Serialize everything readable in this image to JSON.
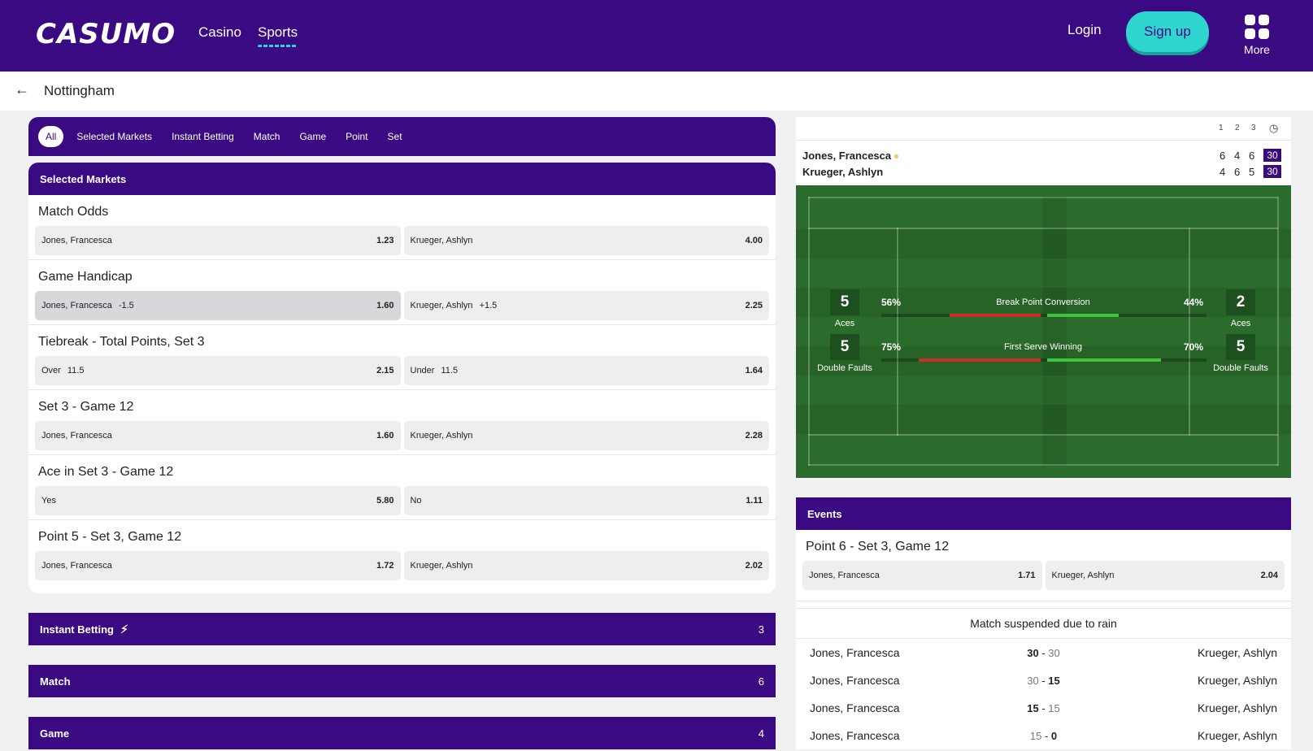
{
  "header": {
    "logo": "CASUMO",
    "nav": [
      {
        "label": "Casino"
      },
      {
        "label": "Sports"
      }
    ],
    "login": "Login",
    "signup": "Sign up",
    "more": "More"
  },
  "breadcrumb": {
    "title": "Nottingham"
  },
  "filters": [
    "All",
    "Selected Markets",
    "Instant Betting",
    "Match",
    "Game",
    "Point",
    "Set"
  ],
  "selected_markets": {
    "title": "Selected Markets",
    "markets": [
      {
        "title": "Match Odds",
        "odds": [
          {
            "label": "Jones, Francesca",
            "line": "",
            "price": "1.23"
          },
          {
            "label": "Krueger, Ashlyn",
            "line": "",
            "price": "4.00"
          }
        ]
      },
      {
        "title": "Game Handicap",
        "odds": [
          {
            "label": "Jones, Francesca",
            "line": "-1.5",
            "price": "1.60"
          },
          {
            "label": "Krueger, Ashlyn",
            "line": "+1.5",
            "price": "2.25"
          }
        ]
      },
      {
        "title": "Tiebreak - Total Points, Set 3",
        "odds": [
          {
            "label": "Over",
            "line": "11.5",
            "price": "2.15"
          },
          {
            "label": "Under",
            "line": "11.5",
            "price": "1.64"
          }
        ]
      },
      {
        "title": "Set 3 - Game 12",
        "odds": [
          {
            "label": "Jones, Francesca",
            "line": "",
            "price": "1.60"
          },
          {
            "label": "Krueger, Ashlyn",
            "line": "",
            "price": "2.28"
          }
        ]
      },
      {
        "title": "Ace in Set 3 - Game 12",
        "odds": [
          {
            "label": "Yes",
            "line": "",
            "price": "5.80"
          },
          {
            "label": "No",
            "line": "",
            "price": "1.11"
          }
        ]
      },
      {
        "title": "Point 5 - Set 3, Game 12",
        "odds": [
          {
            "label": "Jones, Francesca",
            "line": "",
            "price": "1.72"
          },
          {
            "label": "Krueger, Ashlyn",
            "line": "",
            "price": "2.02"
          }
        ]
      }
    ]
  },
  "collapsed_sections": [
    {
      "title": "Instant Betting",
      "count": "3",
      "icon": "lightning-icon"
    },
    {
      "title": "Match",
      "count": "6"
    },
    {
      "title": "Game",
      "count": "4"
    }
  ],
  "scoreboard": {
    "set_headers": [
      "1",
      "2",
      "3"
    ],
    "players": [
      {
        "name": "Jones, Francesca",
        "serving": true,
        "sets": [
          "6",
          "4",
          "6"
        ],
        "points": "30"
      },
      {
        "name": "Krueger, Ashlyn",
        "serving": false,
        "sets": [
          "4",
          "6",
          "5"
        ],
        "points": "30"
      }
    ]
  },
  "stats": {
    "p1_aces": "5",
    "p1_aces_label": "Aces",
    "p2_aces": "2",
    "p2_aces_label": "Aces",
    "p1_df": "5",
    "p1_df_label": "Double Faults",
    "p2_df": "5",
    "p2_df_label": "Double Faults",
    "break_point": {
      "name": "Break Point Conversion",
      "p1": "56%",
      "p2": "44%",
      "p1_val": 0.56,
      "p2_val": 0.44
    },
    "first_serve": {
      "name": "First Serve Winning",
      "p1": "75%",
      "p2": "70%",
      "p1_val": 0.75,
      "p2_val": 0.7
    }
  },
  "events": {
    "title": "Events",
    "market": {
      "title": "Point 6 - Set 3, Game 12",
      "odds": [
        {
          "label": "Jones, Francesca",
          "price": "1.71"
        },
        {
          "label": "Krueger, Ashlyn",
          "price": "2.04"
        }
      ]
    },
    "notice": "Match suspended due to rain",
    "points": [
      {
        "p1": "Jones, Francesca",
        "s1": "30",
        "s2": "30",
        "p2": "Krueger, Ashlyn"
      },
      {
        "p1": "Jones, Francesca",
        "s1": "30",
        "s2": "15",
        "p2": "Krueger, Ashlyn"
      },
      {
        "p1": "Jones, Francesca",
        "s1": "15",
        "s2": "15",
        "p2": "Krueger, Ashlyn"
      },
      {
        "p1": "Jones, Francesca",
        "s1": "15",
        "s2": "0",
        "p2": "Krueger, Ashlyn"
      }
    ]
  },
  "colors": {
    "brand": "#3a0a82",
    "accent": "#2fd6cf",
    "court": "#2b6b2b"
  }
}
